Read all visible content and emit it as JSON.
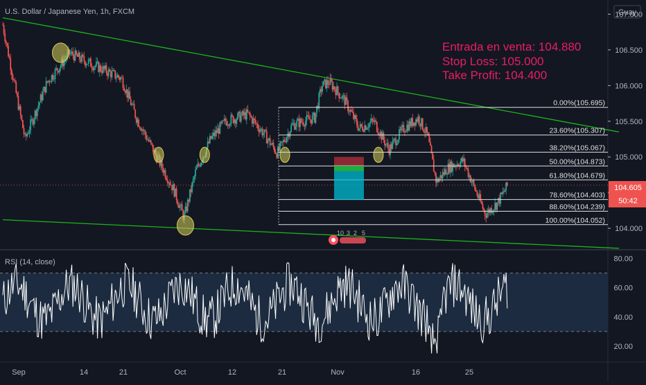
{
  "header": {
    "symbol_title": "U.S. Dollar / Japanese Yen, 1h, FXCM",
    "corner_label": "Guay"
  },
  "annotation": {
    "lines": [
      "Entrada en venta: 104.880",
      "Stop Loss: 105.000",
      "Take Profit: 104.400"
    ],
    "color": "#e91e63"
  },
  "colors": {
    "up": "#26a69a",
    "down": "#ef5350",
    "trend": "#1db51d",
    "fib": "#e0e0e0",
    "rsi": "#ffffff",
    "rsi_band": "#1c2b3f",
    "marker": "#d9cf5a"
  },
  "chart_data": [
    {
      "type": "candlestick",
      "symbol": "USDJPY",
      "timeframe": "1h",
      "ylim": [
        103.7,
        107.15
      ],
      "y_ticks": [
        "104.000",
        "104.500",
        "105.000",
        "105.500",
        "106.000",
        "106.500",
        "107.000"
      ],
      "x_tick_labels": [
        "Sep",
        "14",
        "21",
        "Oct",
        "12",
        "21",
        "Nov",
        "16",
        "25"
      ],
      "price_path": [
        {
          "t": 0.0,
          "p": 106.85
        },
        {
          "t": 1.5,
          "p": 105.25
        },
        {
          "t": 3.0,
          "p": 106.05
        },
        {
          "t": 4.5,
          "p": 106.45
        },
        {
          "t": 6.0,
          "p": 106.3
        },
        {
          "t": 7.0,
          "p": 106.2
        },
        {
          "t": 8.0,
          "p": 106.1
        },
        {
          "t": 9.0,
          "p": 105.55
        },
        {
          "t": 10.5,
          "p": 104.95
        },
        {
          "t": 11.5,
          "p": 104.55
        },
        {
          "t": 12.2,
          "p": 104.15
        },
        {
          "t": 13.0,
          "p": 104.8
        },
        {
          "t": 14.0,
          "p": 105.25
        },
        {
          "t": 15.0,
          "p": 105.5
        },
        {
          "t": 16.5,
          "p": 105.6
        },
        {
          "t": 17.5,
          "p": 105.35
        },
        {
          "t": 18.5,
          "p": 105.05
        },
        {
          "t": 19.5,
          "p": 105.45
        },
        {
          "t": 21.0,
          "p": 105.55
        },
        {
          "t": 21.5,
          "p": 106.0
        },
        {
          "t": 22.0,
          "p": 106.05
        },
        {
          "t": 23.0,
          "p": 105.8
        },
        {
          "t": 24.0,
          "p": 105.4
        },
        {
          "t": 25.0,
          "p": 105.5
        },
        {
          "t": 26.0,
          "p": 105.1
        },
        {
          "t": 27.0,
          "p": 105.4
        },
        {
          "t": 28.0,
          "p": 105.55
        },
        {
          "t": 28.6,
          "p": 105.3
        },
        {
          "t": 29.2,
          "p": 104.65
        },
        {
          "t": 30.0,
          "p": 104.85
        },
        {
          "t": 31.0,
          "p": 104.95
        },
        {
          "t": 31.8,
          "p": 104.55
        },
        {
          "t": 32.5,
          "p": 104.2
        },
        {
          "t": 33.3,
          "p": 104.35
        },
        {
          "t": 34.0,
          "p": 104.6
        }
      ],
      "trendlines": [
        {
          "from": [
            0,
            106.95
          ],
          "to": [
            41.5,
            105.35
          ]
        },
        {
          "from": [
            0,
            104.12
          ],
          "to": [
            41.5,
            103.72
          ]
        }
      ],
      "fibonacci": [
        {
          "label": "0.00%(105.695)",
          "price": 105.695
        },
        {
          "label": "23.60%(105.307)",
          "price": 105.307
        },
        {
          "label": "38.20%(105.067)",
          "price": 105.067
        },
        {
          "label": "50.00%(104.873)",
          "price": 104.873
        },
        {
          "label": "61.80%(104.679)",
          "price": 104.679
        },
        {
          "label": "78.60%(104.403)",
          "price": 104.403
        },
        {
          "label": "88.60%(104.239)",
          "price": 104.239
        },
        {
          "label": "100.00%(104.052)",
          "price": 104.052
        }
      ],
      "trade_box": {
        "entry": 104.88,
        "stop_loss": 105.0,
        "take_profit": 104.4
      },
      "last_price": {
        "value": "104.605",
        "countdown": "50:42"
      },
      "touch_markers": [
        {
          "t": 3.9,
          "p": 106.46
        },
        {
          "t": 10.5,
          "p": 105.03
        },
        {
          "t": 13.6,
          "p": 105.03
        },
        {
          "t": 19.0,
          "p": 105.03
        },
        {
          "t": 25.3,
          "p": 105.03
        },
        {
          "t": 12.3,
          "p": 104.04
        }
      ],
      "event_badge": [
        "10",
        "3",
        "2",
        "5"
      ]
    },
    {
      "type": "line",
      "title": "RSI (14, close)",
      "ylim": [
        10,
        85
      ],
      "y_ticks": [
        "20.00",
        "40.00",
        "60.00",
        "80.00"
      ],
      "band": [
        30,
        70
      ]
    }
  ]
}
